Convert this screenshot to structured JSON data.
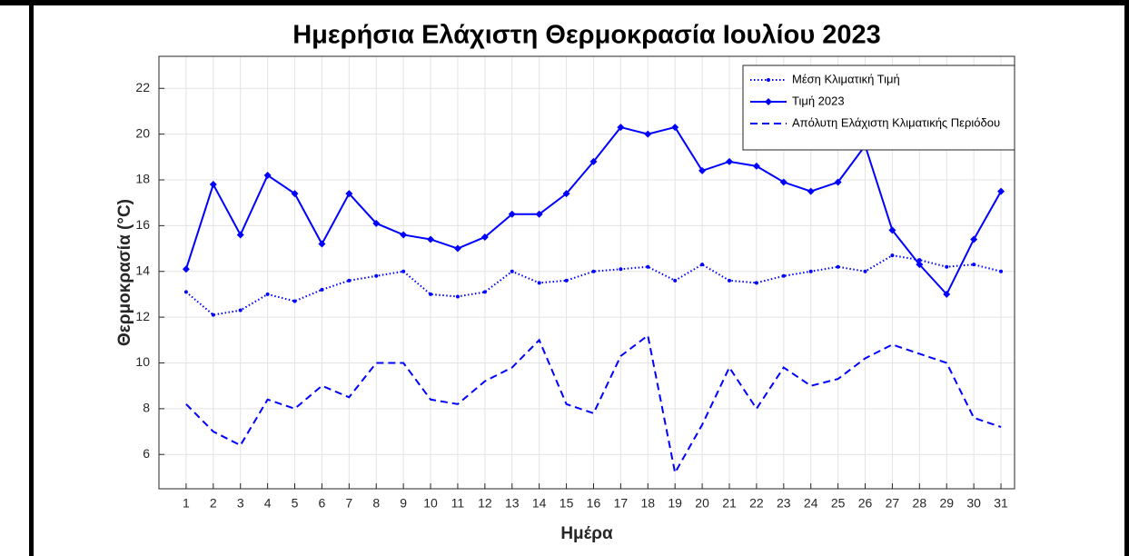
{
  "chart_data": {
    "type": "line",
    "title": "Ημερήσια Ελάχιστη Θερμοκρασία Ιουλίου 2023",
    "xlabel": "Ημέρα",
    "ylabel": "Θερμοκρασία (°C)",
    "x": [
      1,
      2,
      3,
      4,
      5,
      6,
      7,
      8,
      9,
      10,
      11,
      12,
      13,
      14,
      15,
      16,
      17,
      18,
      19,
      20,
      21,
      22,
      23,
      24,
      25,
      26,
      27,
      28,
      29,
      30,
      31
    ],
    "xlim": [
      0,
      31.5
    ],
    "xticks": [
      1,
      2,
      3,
      4,
      5,
      6,
      7,
      8,
      9,
      10,
      11,
      12,
      13,
      14,
      15,
      16,
      17,
      18,
      19,
      20,
      21,
      22,
      23,
      24,
      25,
      26,
      27,
      28,
      29,
      30,
      31
    ],
    "ylim": [
      4.5,
      23.4
    ],
    "yticks": [
      6,
      8,
      10,
      12,
      14,
      16,
      18,
      20,
      22
    ],
    "grid": true,
    "legend": "top-right",
    "series": [
      {
        "name": "Μέση Κλιματική Τιμή",
        "color": "#0000ff",
        "style": "dotted",
        "marker": "dot",
        "values": [
          13.1,
          12.1,
          12.3,
          13.0,
          12.7,
          13.2,
          13.6,
          13.8,
          14.0,
          13.0,
          12.9,
          13.1,
          14.0,
          13.5,
          13.6,
          14.0,
          14.1,
          14.2,
          13.6,
          14.3,
          13.6,
          13.5,
          13.8,
          14.0,
          14.2,
          14.0,
          14.7,
          14.5,
          14.2,
          14.3,
          14.0
        ]
      },
      {
        "name": "Τιμή 2023",
        "color": "#0000ff",
        "style": "solid",
        "marker": "diamond",
        "values": [
          14.1,
          17.8,
          15.6,
          18.2,
          17.4,
          15.2,
          17.4,
          16.1,
          15.6,
          15.4,
          15.0,
          15.5,
          16.5,
          16.5,
          17.4,
          18.8,
          20.3,
          20.0,
          20.3,
          18.4,
          18.8,
          18.6,
          17.9,
          17.5,
          17.9,
          19.5,
          15.8,
          14.3,
          13.0,
          15.4,
          17.5
        ]
      },
      {
        "name": "Απόλυτη Ελάχιστη Κλιματικής Περιόδου",
        "color": "#0000ff",
        "style": "dashed",
        "marker": "none",
        "values": [
          8.2,
          7.0,
          6.4,
          8.4,
          8.0,
          9.0,
          8.5,
          10.0,
          10.0,
          8.4,
          8.2,
          9.2,
          9.8,
          11.0,
          8.2,
          7.8,
          10.3,
          11.2,
          5.2,
          7.3,
          9.8,
          8.0,
          9.8,
          9.0,
          9.3,
          10.2,
          10.8,
          10.4,
          10.0,
          7.6,
          7.2
        ]
      }
    ]
  }
}
